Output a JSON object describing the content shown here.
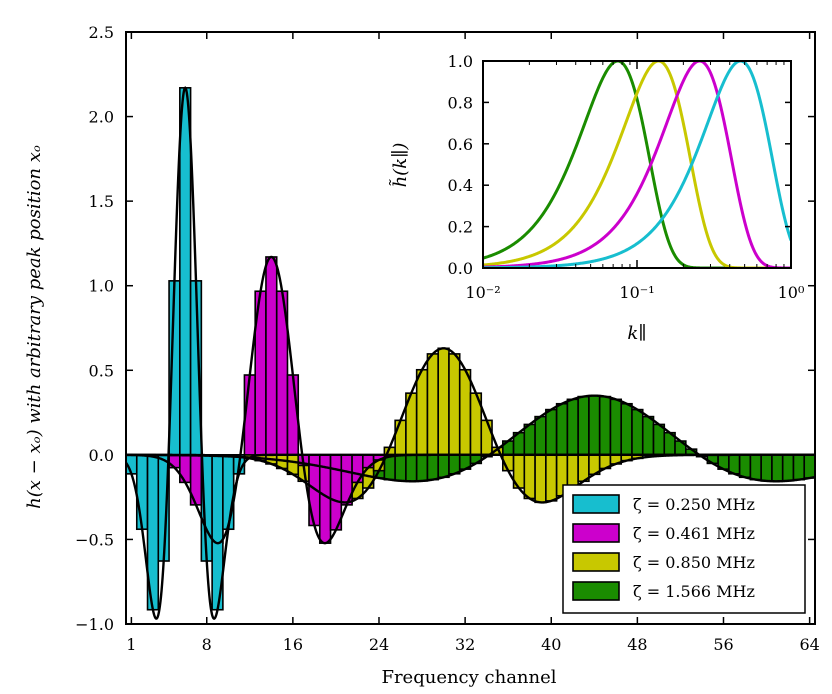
{
  "chart_data": [
    {
      "type": "bar",
      "kind": "main",
      "xlabel": "Frequency channel",
      "ylabel": "h(x − xₒ) with arbitrary peak position xₒ",
      "xlim": [
        0.5,
        64.5
      ],
      "ylim": [
        -1.0,
        2.5
      ],
      "xticks": [
        1,
        8,
        16,
        24,
        32,
        40,
        48,
        56,
        64
      ],
      "yticks": [
        -1.0,
        -0.5,
        0.0,
        0.5,
        1.0,
        1.5,
        2.0,
        2.5
      ],
      "xtick_labels": [
        "1",
        "8",
        "16",
        "24",
        "32",
        "40",
        "48",
        "56",
        "64"
      ],
      "ytick_labels": [
        "−1.0",
        "−0.5",
        "0.0",
        "0.5",
        "1.0",
        "1.5",
        "2.0",
        "2.5"
      ],
      "legend_position": "lower-right",
      "series": [
        {
          "name": "ζ = 0.250 MHz",
          "color": "#17becf",
          "peak_channel": 6,
          "peak_value": 2.17,
          "width_channels": 1.55,
          "bars_from": 1,
          "bars_to": 11
        },
        {
          "name": "ζ = 0.461 MHz",
          "color": "#cc00cc",
          "peak_channel": 14,
          "peak_value": 1.17,
          "width_channels": 2.87,
          "bars_from": 4,
          "bars_to": 24
        },
        {
          "name": "ζ = 0.850 MHz",
          "color": "#c8c800",
          "peak_channel": 30,
          "peak_value": 0.63,
          "width_channels": 5.3,
          "bars_from": 12,
          "bars_to": 48
        },
        {
          "name": "ζ = 1.566 MHz",
          "color": "#1a8c00",
          "peak_channel": 44,
          "peak_value": 0.35,
          "width_channels": 9.75,
          "bars_from": 11,
          "bars_to": 64
        }
      ]
    },
    {
      "type": "line",
      "kind": "inset",
      "xlabel": "k∥",
      "ylabel": "h̃(k∥)",
      "xscale": "log",
      "xlim": [
        0.01,
        1.0
      ],
      "ylim": [
        0.0,
        1.0
      ],
      "xtick_labels": [
        "10⁻²",
        "10⁻¹",
        "10⁰"
      ],
      "ytick_labels": [
        "0.0",
        "0.2",
        "0.4",
        "0.6",
        "0.8",
        "1.0"
      ],
      "yticks": [
        0.0,
        0.2,
        0.4,
        0.6,
        0.8,
        1.0
      ],
      "series": [
        {
          "name": "ζ = 0.250 MHz",
          "color": "#17becf",
          "peak_k": 0.47
        },
        {
          "name": "ζ = 0.461 MHz",
          "color": "#cc00cc",
          "peak_k": 0.255
        },
        {
          "name": "ζ = 0.850 MHz",
          "color": "#c8c800",
          "peak_k": 0.138
        },
        {
          "name": "ζ = 1.566 MHz",
          "color": "#1a8c00",
          "peak_k": 0.075
        }
      ]
    }
  ]
}
